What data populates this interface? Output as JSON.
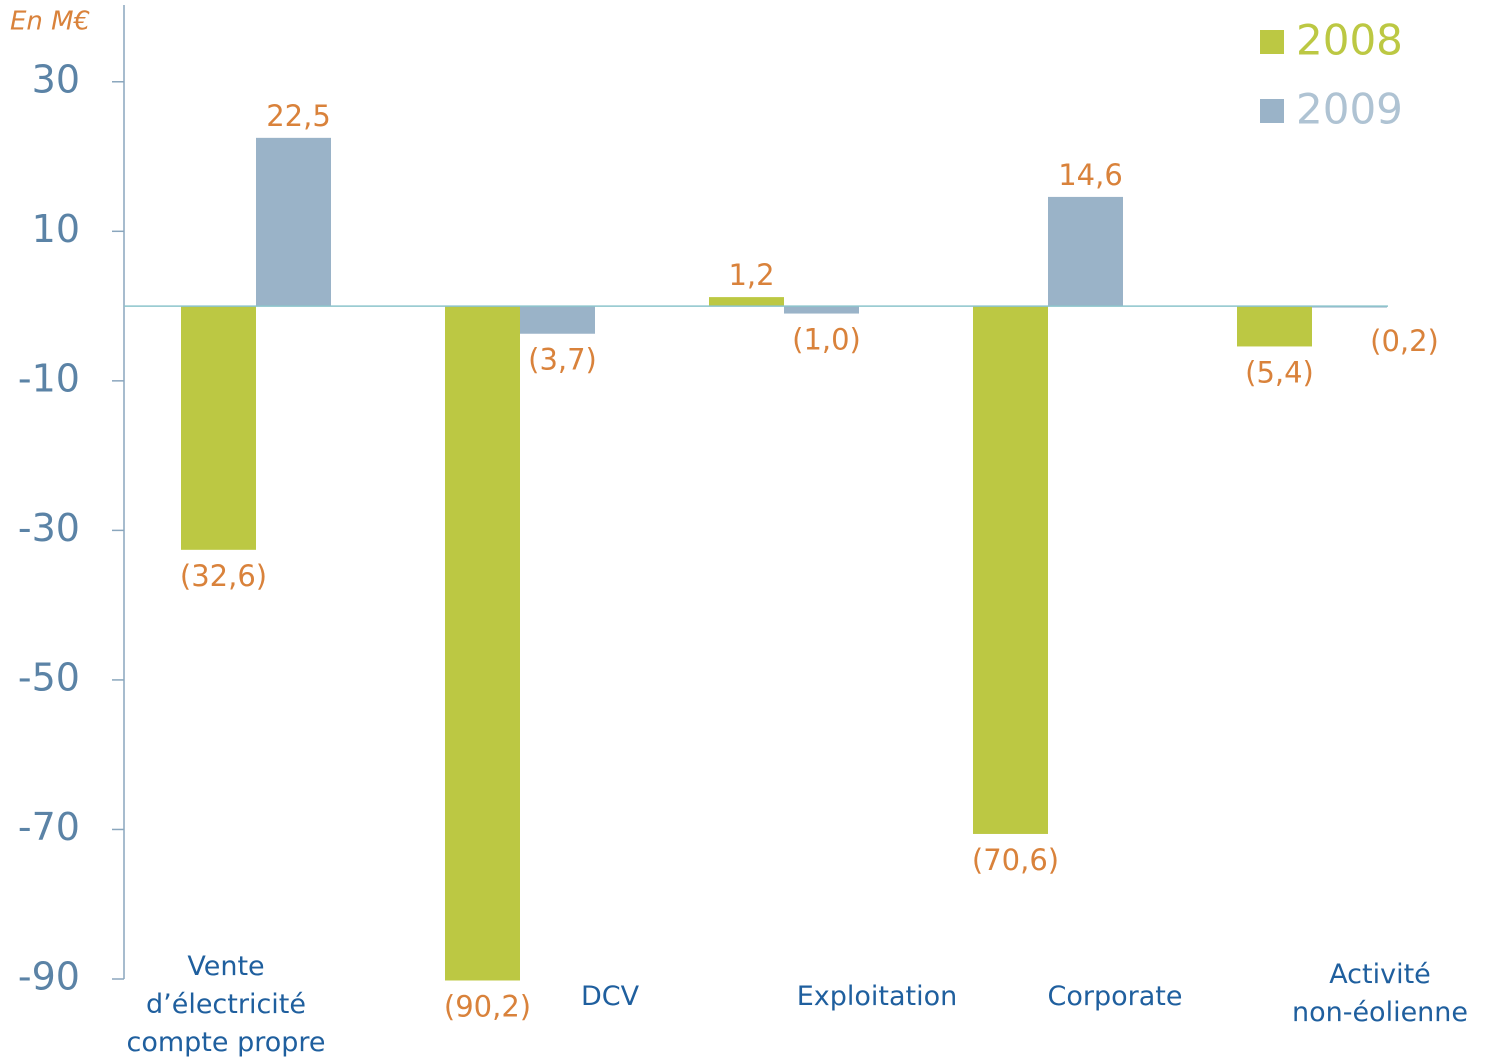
{
  "chart_data": {
    "type": "bar",
    "unit_label": "En M€",
    "categories": [
      "Vente\nd’électricité\ncompte propre",
      "DCV",
      "Exploitation",
      "Corporate",
      "Activité\nnon-éolienne"
    ],
    "series": [
      {
        "name": "2008",
        "color": "#bcc843",
        "values": [
          -32.6,
          -90.2,
          1.2,
          -70.6,
          -5.4
        ],
        "value_labels": [
          "(32,6)",
          "(90,2)",
          "1,2",
          "(70,6)",
          "(5,4)"
        ]
      },
      {
        "name": "2009",
        "color": "#9ab3c8",
        "values": [
          22.5,
          -3.7,
          -1.0,
          14.6,
          -0.2
        ],
        "value_labels": [
          "22,5",
          "(3,7)",
          "(1,0)",
          "14,6",
          "(0,2)"
        ]
      }
    ],
    "ylim": [
      -90,
      40
    ],
    "yticks": [
      30,
      10,
      -10,
      -30,
      -50,
      -70,
      -90
    ],
    "legend": "top-right"
  }
}
